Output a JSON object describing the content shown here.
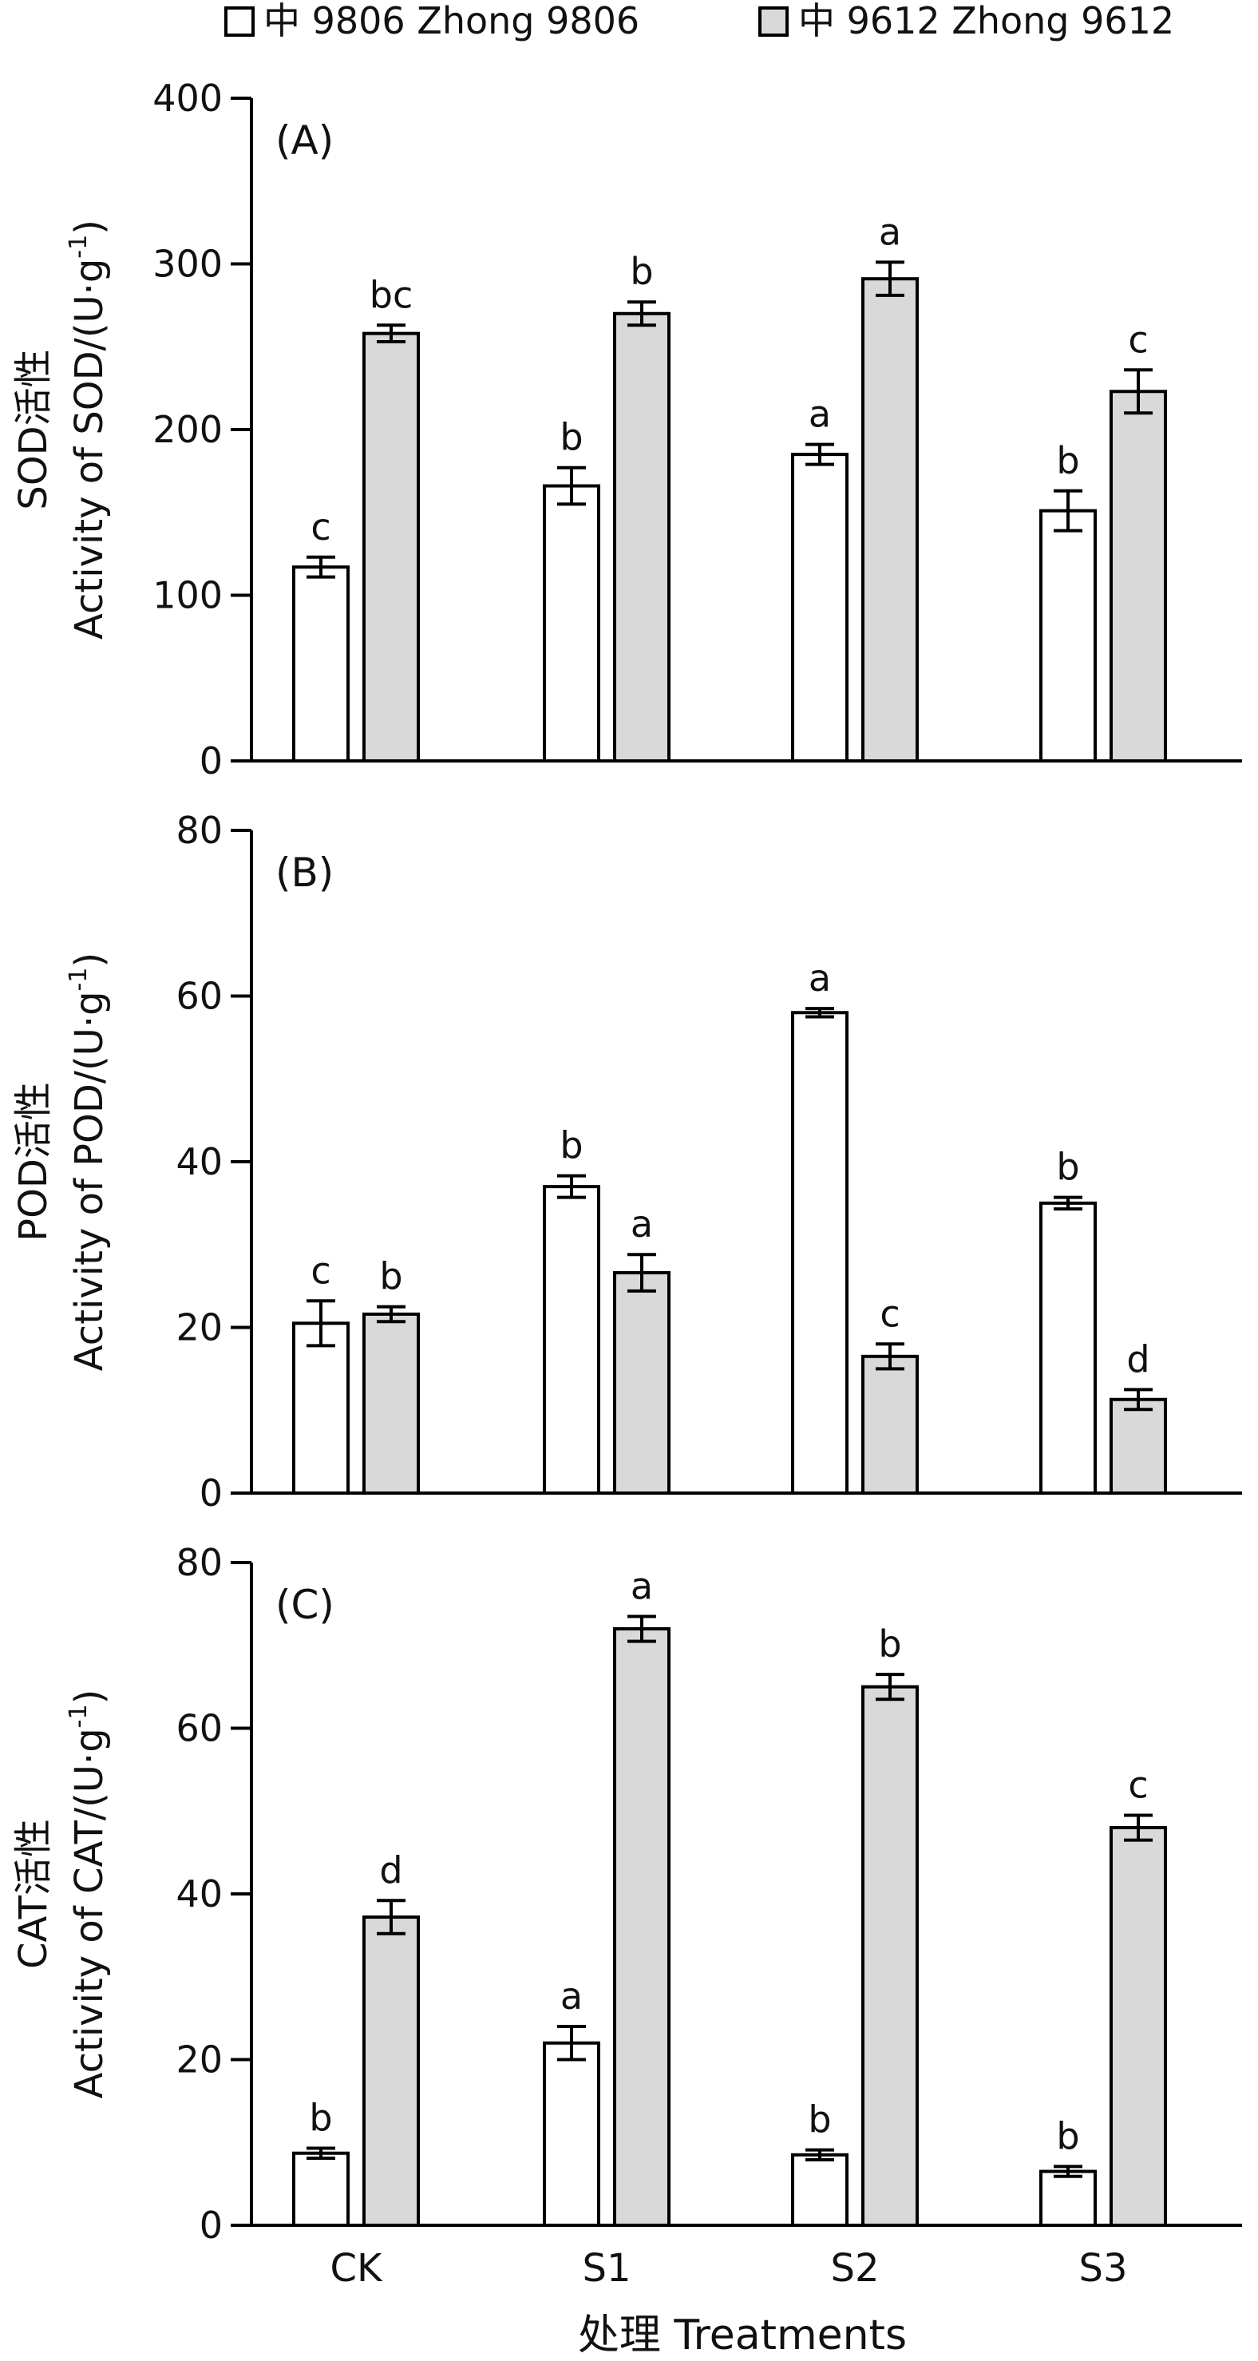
{
  "legend": {
    "items": [
      {
        "label": "中 9806 Zhong 9806",
        "color": "#ffffff"
      },
      {
        "label": "中 9612 Zhong 9612",
        "color": "#d9d9d9"
      }
    ]
  },
  "x_axis_title": "处理 Treatments",
  "chart_data": [
    {
      "type": "bar",
      "panel_label": "(A)",
      "ylabel_cn": "SOD活性",
      "ylabel_en": "Activity of SOD/(U·g",
      "ylabel_sup": "-1",
      "ylabel_close": ")",
      "ylim": [
        0,
        400
      ],
      "yticks": [
        0,
        100,
        200,
        300,
        400
      ],
      "categories": [
        "CK",
        "S1",
        "S2",
        "S3"
      ],
      "series": [
        {
          "name": "中 9806 Zhong 9806",
          "values": [
            117,
            166,
            185,
            151
          ],
          "errors": [
            6,
            11,
            6,
            12
          ],
          "letters": [
            "c",
            "b",
            "a",
            "b"
          ]
        },
        {
          "name": "中 9612 Zhong 9612",
          "values": [
            258,
            270,
            291,
            223
          ],
          "errors": [
            5,
            7,
            10,
            13
          ],
          "letters": [
            "bc",
            "b",
            "a",
            "c"
          ]
        }
      ]
    },
    {
      "type": "bar",
      "panel_label": "(B)",
      "ylabel_cn": "POD活性",
      "ylabel_en": "Activity of POD/(U·g",
      "ylabel_sup": "-1",
      "ylabel_close": ")",
      "ylim": [
        0,
        80
      ],
      "yticks": [
        0,
        20,
        40,
        60,
        80
      ],
      "categories": [
        "CK",
        "S1",
        "S2",
        "S3"
      ],
      "series": [
        {
          "name": "中 9806 Zhong 9806",
          "values": [
            20.5,
            37,
            58,
            35
          ],
          "errors": [
            2.7,
            1.3,
            0.5,
            0.7
          ],
          "letters": [
            "c",
            "b",
            "a",
            "b"
          ]
        },
        {
          "name": "中 9612 Zhong 9612",
          "values": [
            21.6,
            26.6,
            16.5,
            11.3
          ],
          "errors": [
            0.9,
            2.2,
            1.5,
            1.2
          ],
          "letters": [
            "b",
            "a",
            "c",
            "d"
          ]
        }
      ]
    },
    {
      "type": "bar",
      "panel_label": "(C)",
      "ylabel_cn": "CAT活性",
      "ylabel_en": "Activity of CAT/(U·g",
      "ylabel_sup": "-1",
      "ylabel_close": ")",
      "ylim": [
        0,
        80
      ],
      "yticks": [
        0,
        20,
        40,
        60,
        80
      ],
      "categories": [
        "CK",
        "S1",
        "S2",
        "S3"
      ],
      "series": [
        {
          "name": "中 9806 Zhong 9806",
          "values": [
            8.7,
            22,
            8.5,
            6.5
          ],
          "errors": [
            0.6,
            2,
            0.6,
            0.6
          ],
          "letters": [
            "b",
            "a",
            "b",
            "b"
          ]
        },
        {
          "name": "中 9612 Zhong 9612",
          "values": [
            37.2,
            72,
            65,
            48
          ],
          "errors": [
            2,
            1.5,
            1.5,
            1.5
          ],
          "letters": [
            "d",
            "a",
            "b",
            "c"
          ]
        }
      ]
    }
  ]
}
